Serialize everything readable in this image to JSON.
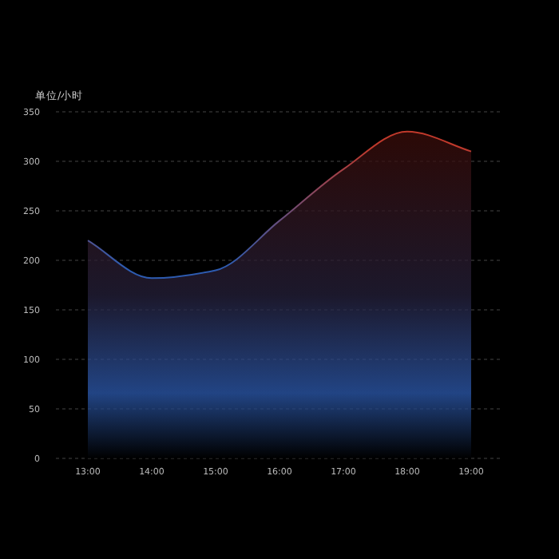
{
  "chart_data": {
    "type": "area",
    "ylabel": "单位/小时",
    "categories": [
      "13:00",
      "14:00",
      "15:00",
      "16:00",
      "17:00",
      "18:00",
      "19:00"
    ],
    "series": [
      {
        "color": "#2d5bb0",
        "values": [
          220,
          182,
          190,
          240,
          292,
          330,
          310
        ]
      }
    ],
    "ylim": [
      0,
      350
    ],
    "yticks": [
      0,
      50,
      100,
      150,
      200,
      250,
      300,
      350
    ],
    "grid": "y"
  }
}
